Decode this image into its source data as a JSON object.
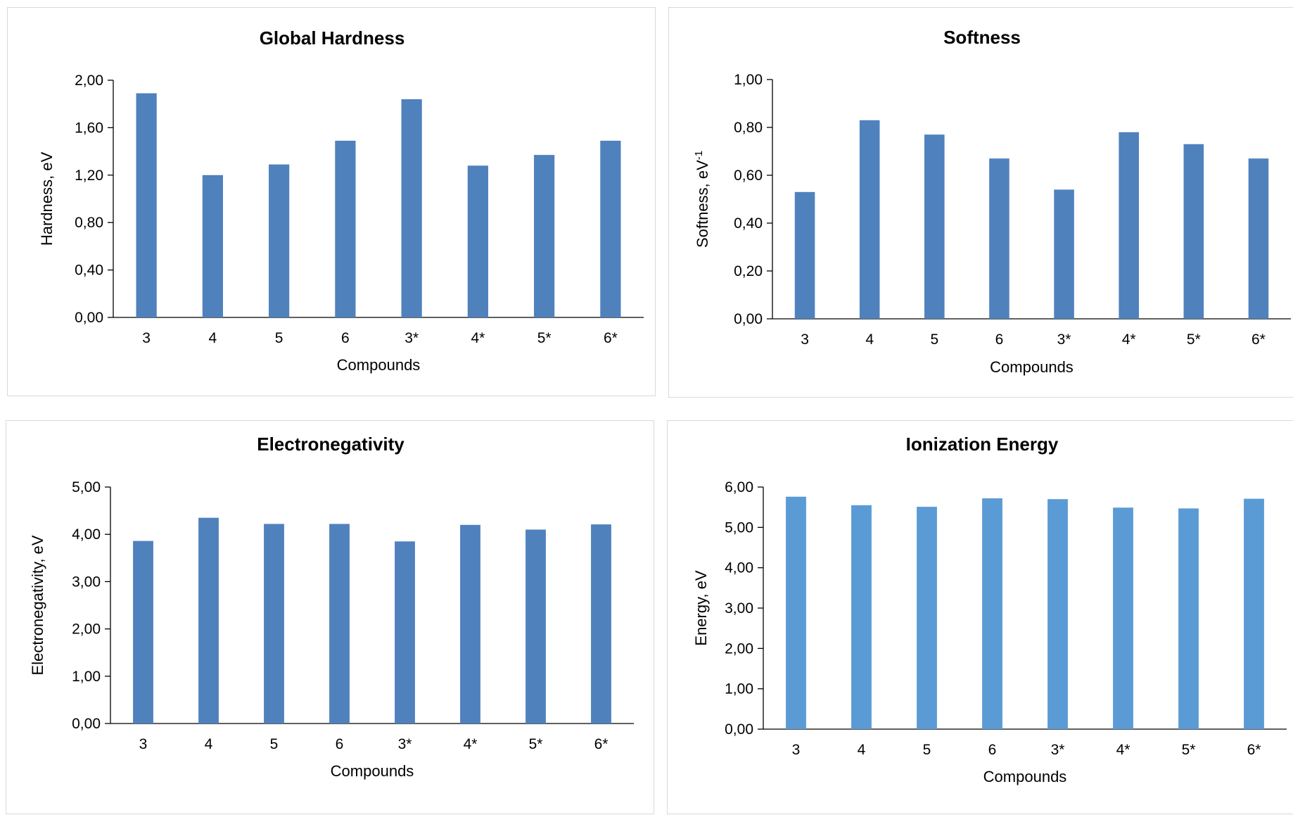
{
  "charts": [
    {
      "type": "bar",
      "title": "Global Hardness",
      "xlabel": "Compounds",
      "ylabel": "Hardness, eV",
      "ylabel_sup": "",
      "categories": [
        "3",
        "4",
        "5",
        "6",
        "3*",
        "4*",
        "5*",
        "6*"
      ],
      "values": [
        1.89,
        1.2,
        1.29,
        1.49,
        1.84,
        1.28,
        1.37,
        1.49
      ],
      "ylim": [
        0,
        2
      ],
      "yticks": [
        "0,00",
        "0,40",
        "0,80",
        "1,20",
        "1,60",
        "2,00"
      ],
      "color": "#4f81bd",
      "grid": false,
      "legend": "none"
    },
    {
      "type": "bar",
      "title": "Softness",
      "xlabel": "Compounds",
      "ylabel": "Softness, eV",
      "ylabel_sup": "-1",
      "categories": [
        "3",
        "4",
        "5",
        "6",
        "3*",
        "4*",
        "5*",
        "6*"
      ],
      "values": [
        0.53,
        0.83,
        0.77,
        0.67,
        0.54,
        0.78,
        0.73,
        0.67
      ],
      "ylim": [
        0,
        1
      ],
      "yticks": [
        "0,00",
        "0,20",
        "0,40",
        "0,60",
        "0,80",
        "1,00"
      ],
      "color": "#4f81bd",
      "grid": false,
      "legend": "none"
    },
    {
      "type": "bar",
      "title": "Electronegativity",
      "xlabel": "Compounds",
      "ylabel": "Electronegativity, eV",
      "ylabel_sup": "",
      "categories": [
        "3",
        "4",
        "5",
        "6",
        "3*",
        "4*",
        "5*",
        "6*"
      ],
      "values": [
        3.86,
        4.35,
        4.22,
        4.22,
        3.85,
        4.2,
        4.1,
        4.21
      ],
      "ylim": [
        0,
        5
      ],
      "yticks": [
        "0,00",
        "1,00",
        "2,00",
        "3,00",
        "4,00",
        "5,00"
      ],
      "color": "#4f81bd",
      "grid": false,
      "legend": "none"
    },
    {
      "type": "bar",
      "title": "Ionization Energy",
      "xlabel": "Compounds",
      "ylabel": "Energy, eV",
      "ylabel_sup": "",
      "categories": [
        "3",
        "4",
        "5",
        "6",
        "3*",
        "4*",
        "5*",
        "6*"
      ],
      "values": [
        5.76,
        5.55,
        5.51,
        5.72,
        5.7,
        5.49,
        5.47,
        5.71
      ],
      "ylim": [
        0,
        6
      ],
      "yticks": [
        "0,00",
        "1,00",
        "2,00",
        "3,00",
        "4,00",
        "5,00",
        "6,00"
      ],
      "color": "#5b9bd5",
      "grid": false,
      "legend": "none"
    }
  ]
}
